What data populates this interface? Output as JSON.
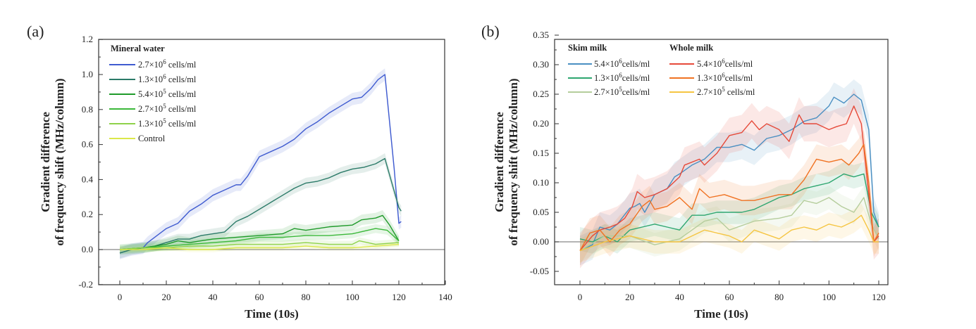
{
  "chart_data": [
    {
      "panel_label": "(a)",
      "type": "line",
      "xlabel": "Time (10s)",
      "ylabel_lines": [
        "Gradient difference",
        "of frequency shift (MHz/column)"
      ],
      "xlim": [
        -10,
        140
      ],
      "ylim": [
        -0.2,
        1.2
      ],
      "xticks": [
        0,
        20,
        40,
        60,
        80,
        100,
        120,
        140
      ],
      "yticks": [
        -0.2,
        0.0,
        0.2,
        0.4,
        0.6,
        0.8,
        1.0,
        1.2
      ],
      "ytick_decimals": 1,
      "baseline": 0,
      "legend_groups": [
        {
          "title": "Mineral water",
          "series": [
            0,
            1,
            2,
            3,
            4,
            5
          ]
        }
      ],
      "series": [
        {
          "name": "2.7×10^6 cells/ml",
          "mant": "2.7×10",
          "exp": "6",
          "unit": " cells/ml",
          "color": "#3f5bd0",
          "band": 0.035,
          "x": [
            0,
            5,
            10,
            12,
            15,
            20,
            25,
            30,
            35,
            40,
            45,
            50,
            52,
            55,
            60,
            65,
            70,
            75,
            80,
            85,
            90,
            95,
            100,
            104,
            108,
            111,
            114,
            118,
            120,
            121
          ],
          "y": [
            -0.02,
            0.0,
            0.01,
            0.04,
            0.07,
            0.12,
            0.15,
            0.22,
            0.26,
            0.31,
            0.34,
            0.37,
            0.37,
            0.42,
            0.53,
            0.56,
            0.59,
            0.63,
            0.69,
            0.73,
            0.78,
            0.82,
            0.86,
            0.87,
            0.92,
            0.97,
            1.0,
            0.46,
            0.15,
            0.16
          ]
        },
        {
          "name": "1.3×10^6 cells/ml",
          "mant": "1.3×10",
          "exp": "6",
          "unit": " cells/ml",
          "color": "#2b7a68",
          "band": 0.03,
          "x": [
            0,
            5,
            10,
            15,
            20,
            25,
            30,
            35,
            40,
            45,
            50,
            55,
            60,
            65,
            70,
            75,
            80,
            85,
            90,
            95,
            100,
            105,
            110,
            114,
            117,
            120,
            121
          ],
          "y": [
            -0.02,
            0.0,
            0.01,
            0.02,
            0.04,
            0.06,
            0.06,
            0.08,
            0.09,
            0.1,
            0.16,
            0.19,
            0.23,
            0.27,
            0.31,
            0.35,
            0.38,
            0.39,
            0.41,
            0.44,
            0.46,
            0.47,
            0.49,
            0.52,
            0.38,
            0.24,
            0.22
          ]
        },
        {
          "name": "5.4×10^5 cells/ml",
          "mant": "5.4×10",
          "exp": "5",
          "unit": " cells/ml",
          "color": "#1f9a2a",
          "band": 0.03,
          "x": [
            0,
            10,
            20,
            25,
            30,
            40,
            50,
            60,
            70,
            75,
            80,
            90,
            100,
            104,
            110,
            113,
            116,
            120
          ],
          "y": [
            0.0,
            0.01,
            0.03,
            0.05,
            0.04,
            0.06,
            0.07,
            0.08,
            0.09,
            0.12,
            0.11,
            0.13,
            0.14,
            0.17,
            0.18,
            0.195,
            0.14,
            0.05
          ]
        },
        {
          "name": "2.7×10^5 cells/ml",
          "mant": "2.7×10",
          "exp": "5",
          "unit": " cells/ml",
          "color": "#3bb83a",
          "band": 0.025,
          "x": [
            0,
            10,
            20,
            30,
            40,
            50,
            60,
            70,
            80,
            90,
            100,
            110,
            115,
            120
          ],
          "y": [
            0.0,
            0.01,
            0.02,
            0.03,
            0.04,
            0.05,
            0.07,
            0.07,
            0.08,
            0.08,
            0.09,
            0.12,
            0.11,
            0.05
          ]
        },
        {
          "name": "1.3×10^5 cells/ml",
          "mant": "1.3×10",
          "exp": "5",
          "unit": " cells/ml",
          "color": "#8ed24a",
          "band": 0.02,
          "x": [
            0,
            10,
            20,
            30,
            40,
            50,
            60,
            70,
            80,
            90,
            100,
            103,
            110,
            120
          ],
          "y": [
            0.0,
            0.01,
            0.01,
            0.02,
            0.02,
            0.03,
            0.03,
            0.03,
            0.04,
            0.03,
            0.03,
            0.05,
            0.03,
            0.04
          ]
        },
        {
          "name": "Control",
          "mant": "Control",
          "exp": "",
          "unit": "",
          "color": "#dbe84a",
          "band": 0.015,
          "x": [
            0,
            10,
            20,
            30,
            40,
            50,
            60,
            70,
            80,
            90,
            100,
            110,
            120
          ],
          "y": [
            0.0,
            0.0,
            0.01,
            0.0,
            0.0,
            0.01,
            0.01,
            0.01,
            0.02,
            0.01,
            0.01,
            0.02,
            0.03
          ]
        }
      ]
    },
    {
      "panel_label": "(b)",
      "type": "line",
      "xlabel": "Time (10s)",
      "ylabel_lines": [
        "Gradient difference",
        "of frequency shift (MHz/column)"
      ],
      "xlim": [
        -8,
        123
      ],
      "ylim": [
        -0.075,
        0.35
      ],
      "xticks": [
        0,
        20,
        40,
        60,
        80,
        100,
        120
      ],
      "yticks": [
        -0.05,
        0.0,
        0.05,
        0.1,
        0.15,
        0.2,
        0.25,
        0.3,
        0.35
      ],
      "ytick_decimals": 2,
      "baseline": 0,
      "legend_groups": [
        {
          "title": "Skim milk",
          "series": [
            0,
            1,
            2
          ]
        },
        {
          "title": "Whole milk",
          "series": [
            3,
            4,
            5
          ]
        }
      ],
      "series": [
        {
          "name": "Skim 5.4×10^6cells/ml",
          "mant": "5.4×10",
          "exp": "6",
          "unit": "cells/ml",
          "color": "#4a8fc2",
          "band": 0.025,
          "x": [
            0,
            5,
            8,
            12,
            15,
            20,
            22,
            24,
            26,
            30,
            35,
            38,
            40,
            45,
            50,
            55,
            60,
            65,
            70,
            75,
            80,
            85,
            90,
            95,
            100,
            102,
            106,
            110,
            113,
            116,
            118,
            120
          ],
          "y": [
            -0.015,
            -0.005,
            0.025,
            0.02,
            0.03,
            0.057,
            0.06,
            0.065,
            0.05,
            0.08,
            0.09,
            0.11,
            0.115,
            0.13,
            0.14,
            0.16,
            0.16,
            0.165,
            0.155,
            0.175,
            0.18,
            0.19,
            0.204,
            0.21,
            0.23,
            0.245,
            0.235,
            0.25,
            0.24,
            0.19,
            0.05,
            0.025
          ]
        },
        {
          "name": "Skim 1.3×10^6cells/ml",
          "mant": "1.3×10",
          "exp": "6",
          "unit": "cells/ml",
          "color": "#2ea670",
          "band": 0.02,
          "x": [
            0,
            5,
            10,
            15,
            20,
            25,
            30,
            35,
            40,
            45,
            50,
            55,
            60,
            65,
            70,
            75,
            80,
            85,
            90,
            95,
            100,
            106,
            110,
            114,
            117,
            120
          ],
          "y": [
            0.005,
            0.0,
            0.01,
            0.0,
            0.02,
            0.025,
            0.03,
            0.025,
            0.02,
            0.045,
            0.045,
            0.05,
            0.05,
            0.05,
            0.055,
            0.065,
            0.075,
            0.08,
            0.09,
            0.095,
            0.1,
            0.115,
            0.11,
            0.115,
            0.05,
            0.025
          ]
        },
        {
          "name": "Skim 2.7×10^5cells/ml",
          "mant": "2.7×10",
          "exp": "5",
          "unit": "cells/ml",
          "color": "#b5cd9c",
          "band": 0.02,
          "x": [
            0,
            10,
            20,
            30,
            40,
            50,
            55,
            60,
            70,
            80,
            85,
            90,
            95,
            100,
            105,
            110,
            114,
            117,
            120
          ],
          "y": [
            -0.015,
            0.01,
            0.01,
            -0.005,
            0.005,
            0.035,
            0.04,
            0.02,
            0.035,
            0.04,
            0.045,
            0.07,
            0.065,
            0.075,
            0.06,
            0.05,
            0.075,
            0.03,
            0.005
          ]
        },
        {
          "name": "Whole 5.4×10^6cells/ml",
          "mant": "5.4×10",
          "exp": "6",
          "unit": "cells/ml",
          "color": "#e64a3a",
          "band": 0.03,
          "x": [
            0,
            5,
            8,
            12,
            15,
            18,
            21,
            23,
            26,
            30,
            35,
            40,
            42,
            48,
            50,
            55,
            60,
            65,
            69,
            72,
            75,
            80,
            84,
            88,
            90,
            95,
            100,
            103,
            107,
            110,
            113,
            116,
            118,
            120
          ],
          "y": [
            -0.015,
            0.01,
            0.02,
            0.025,
            0.03,
            0.04,
            0.06,
            0.085,
            0.075,
            0.08,
            0.09,
            0.11,
            0.13,
            0.14,
            0.13,
            0.15,
            0.18,
            0.185,
            0.205,
            0.19,
            0.2,
            0.19,
            0.17,
            0.215,
            0.2,
            0.2,
            0.19,
            0.195,
            0.2,
            0.23,
            0.2,
            0.08,
            0.0,
            0.01
          ]
        },
        {
          "name": "Whole 1.3×10^6cells/ml",
          "mant": "1.3×10",
          "exp": "6",
          "unit": "cells/ml",
          "color": "#f07222",
          "band": 0.025,
          "x": [
            0,
            4,
            8,
            12,
            16,
            20,
            25,
            28,
            30,
            35,
            40,
            45,
            48,
            52,
            58,
            65,
            70,
            75,
            80,
            85,
            90,
            95,
            100,
            105,
            108,
            112,
            114,
            116,
            118,
            120
          ],
          "y": [
            -0.015,
            0.015,
            0.02,
            0.0,
            0.02,
            0.03,
            0.06,
            0.07,
            0.055,
            0.06,
            0.075,
            0.055,
            0.09,
            0.075,
            0.08,
            0.07,
            0.07,
            0.075,
            0.08,
            0.08,
            0.105,
            0.14,
            0.135,
            0.14,
            0.13,
            0.15,
            0.165,
            0.1,
            0.0,
            0.015
          ]
        },
        {
          "name": "Whole 2.7×10^5 cells/ml",
          "mant": "2.7×10",
          "exp": "5",
          "unit": " cells/ml",
          "color": "#f5c542",
          "band": 0.02,
          "x": [
            0,
            10,
            20,
            30,
            40,
            45,
            50,
            55,
            60,
            65,
            70,
            80,
            85,
            90,
            95,
            100,
            105,
            110,
            113,
            116,
            118,
            120
          ],
          "y": [
            -0.015,
            0.0,
            0.01,
            0.0,
            0.0,
            0.01,
            0.02,
            0.015,
            0.01,
            0.0,
            0.02,
            0.005,
            0.02,
            0.025,
            0.02,
            0.03,
            0.025,
            0.035,
            0.045,
            0.02,
            0.0,
            0.0
          ]
        }
      ]
    }
  ]
}
